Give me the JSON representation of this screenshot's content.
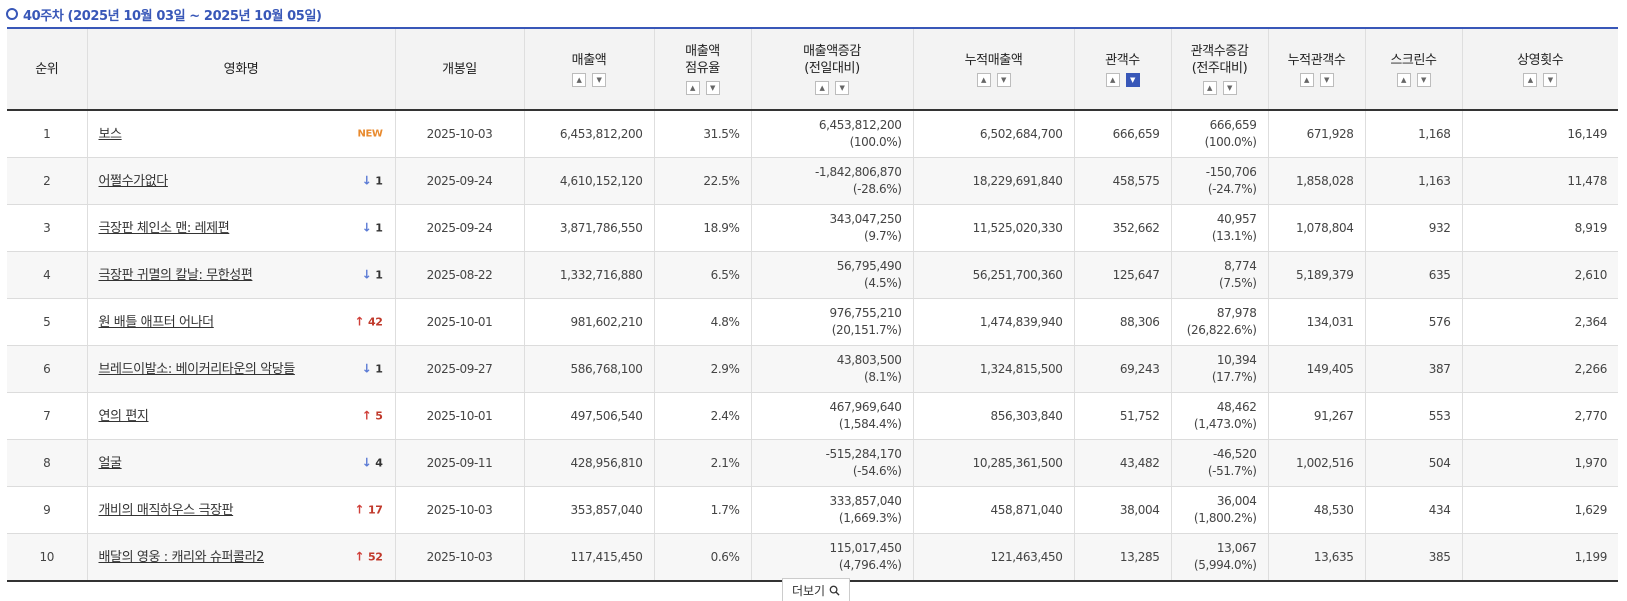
{
  "week_title": "40주차 (2025년 10월 03일 ~ 2025년 10월 05일)",
  "columns": {
    "rank": "순위",
    "title": "영화명",
    "open_date": "개봉일",
    "sales": "매출액",
    "share_l1": "매출액",
    "share_l2": "점유율",
    "sales_change_l1": "매출액증감",
    "sales_change_l2": "(전일대비)",
    "cum_sales": "누적매출액",
    "audience": "관객수",
    "aud_change_l1": "관객수증감",
    "aud_change_l2": "(전주대비)",
    "cum_audience": "누적관객수",
    "screens": "스크린수",
    "showings": "상영횟수"
  },
  "sort_icons": {
    "up": "▲",
    "down": "▼"
  },
  "rows": [
    {
      "rank": "1",
      "title": "보스",
      "badge_type": "new",
      "badge_text": "NEW",
      "open_date": "2025-10-03",
      "sales": "6,453,812,200",
      "share": "31.5%",
      "sales_change": "6,453,812,200",
      "sales_change_pct": "(100.0%)",
      "cum_sales": "6,502,684,700",
      "audience": "666,659",
      "aud_change": "666,659",
      "aud_change_pct": "(100.0%)",
      "cum_audience": "671,928",
      "screens": "1,168",
      "showings": "16,149"
    },
    {
      "rank": "2",
      "title": "어쩔수가없다",
      "badge_type": "down",
      "badge_text": "1",
      "open_date": "2025-09-24",
      "sales": "4,610,152,120",
      "share": "22.5%",
      "sales_change": "-1,842,806,870",
      "sales_change_pct": "(-28.6%)",
      "cum_sales": "18,229,691,840",
      "audience": "458,575",
      "aud_change": "-150,706",
      "aud_change_pct": "(-24.7%)",
      "cum_audience": "1,858,028",
      "screens": "1,163",
      "showings": "11,478"
    },
    {
      "rank": "3",
      "title": "극장판 체인소 맨: 레제편",
      "badge_type": "down",
      "badge_text": "1",
      "open_date": "2025-09-24",
      "sales": "3,871,786,550",
      "share": "18.9%",
      "sales_change": "343,047,250",
      "sales_change_pct": "(9.7%)",
      "cum_sales": "11,525,020,330",
      "audience": "352,662",
      "aud_change": "40,957",
      "aud_change_pct": "(13.1%)",
      "cum_audience": "1,078,804",
      "screens": "932",
      "showings": "8,919"
    },
    {
      "rank": "4",
      "title": "극장판 귀멸의 칼날: 무한성편",
      "badge_type": "down",
      "badge_text": "1",
      "open_date": "2025-08-22",
      "sales": "1,332,716,880",
      "share": "6.5%",
      "sales_change": "56,795,490",
      "sales_change_pct": "(4.5%)",
      "cum_sales": "56,251,700,360",
      "audience": "125,647",
      "aud_change": "8,774",
      "aud_change_pct": "(7.5%)",
      "cum_audience": "5,189,379",
      "screens": "635",
      "showings": "2,610"
    },
    {
      "rank": "5",
      "title": "원 배틀 애프터 어나더",
      "badge_type": "up",
      "badge_text": "42",
      "open_date": "2025-10-01",
      "sales": "981,602,210",
      "share": "4.8%",
      "sales_change": "976,755,210",
      "sales_change_pct": "(20,151.7%)",
      "cum_sales": "1,474,839,940",
      "audience": "88,306",
      "aud_change": "87,978",
      "aud_change_pct": "(26,822.6%)",
      "cum_audience": "134,031",
      "screens": "576",
      "showings": "2,364"
    },
    {
      "rank": "6",
      "title": "브레드이발소: 베이커리타운의 악당들",
      "badge_type": "down",
      "badge_text": "1",
      "open_date": "2025-09-27",
      "sales": "586,768,100",
      "share": "2.9%",
      "sales_change": "43,803,500",
      "sales_change_pct": "(8.1%)",
      "cum_sales": "1,324,815,500",
      "audience": "69,243",
      "aud_change": "10,394",
      "aud_change_pct": "(17.7%)",
      "cum_audience": "149,405",
      "screens": "387",
      "showings": "2,266"
    },
    {
      "rank": "7",
      "title": "연의 편지",
      "badge_type": "up",
      "badge_text": "5",
      "open_date": "2025-10-01",
      "sales": "497,506,540",
      "share": "2.4%",
      "sales_change": "467,969,640",
      "sales_change_pct": "(1,584.4%)",
      "cum_sales": "856,303,840",
      "audience": "51,752",
      "aud_change": "48,462",
      "aud_change_pct": "(1,473.0%)",
      "cum_audience": "91,267",
      "screens": "553",
      "showings": "2,770"
    },
    {
      "rank": "8",
      "title": "얼굴",
      "badge_type": "down",
      "badge_text": "4",
      "open_date": "2025-09-11",
      "sales": "428,956,810",
      "share": "2.1%",
      "sales_change": "-515,284,170",
      "sales_change_pct": "(-54.6%)",
      "cum_sales": "10,285,361,500",
      "audience": "43,482",
      "aud_change": "-46,520",
      "aud_change_pct": "(-51.7%)",
      "cum_audience": "1,002,516",
      "screens": "504",
      "showings": "1,970"
    },
    {
      "rank": "9",
      "title": "개비의 매직하우스 극장판",
      "badge_type": "up",
      "badge_text": "17",
      "open_date": "2025-10-03",
      "sales": "353,857,040",
      "share": "1.7%",
      "sales_change": "333,857,040",
      "sales_change_pct": "(1,669.3%)",
      "cum_sales": "458,871,040",
      "audience": "38,004",
      "aud_change": "36,004",
      "aud_change_pct": "(1,800.2%)",
      "cum_audience": "48,530",
      "screens": "434",
      "showings": "1,629"
    },
    {
      "rank": "10",
      "title": "배달의 영웅 : 캐리와 슈퍼콜라2",
      "badge_type": "up",
      "badge_text": "52",
      "open_date": "2025-10-03",
      "sales": "117,415,450",
      "share": "0.6%",
      "sales_change": "115,017,450",
      "sales_change_pct": "(4,796.4%)",
      "cum_sales": "121,463,450",
      "audience": "13,285",
      "aud_change": "13,067",
      "aud_change_pct": "(5,994.0%)",
      "cum_audience": "13,635",
      "screens": "385",
      "showings": "1,199"
    }
  ],
  "more_button": "더보기"
}
